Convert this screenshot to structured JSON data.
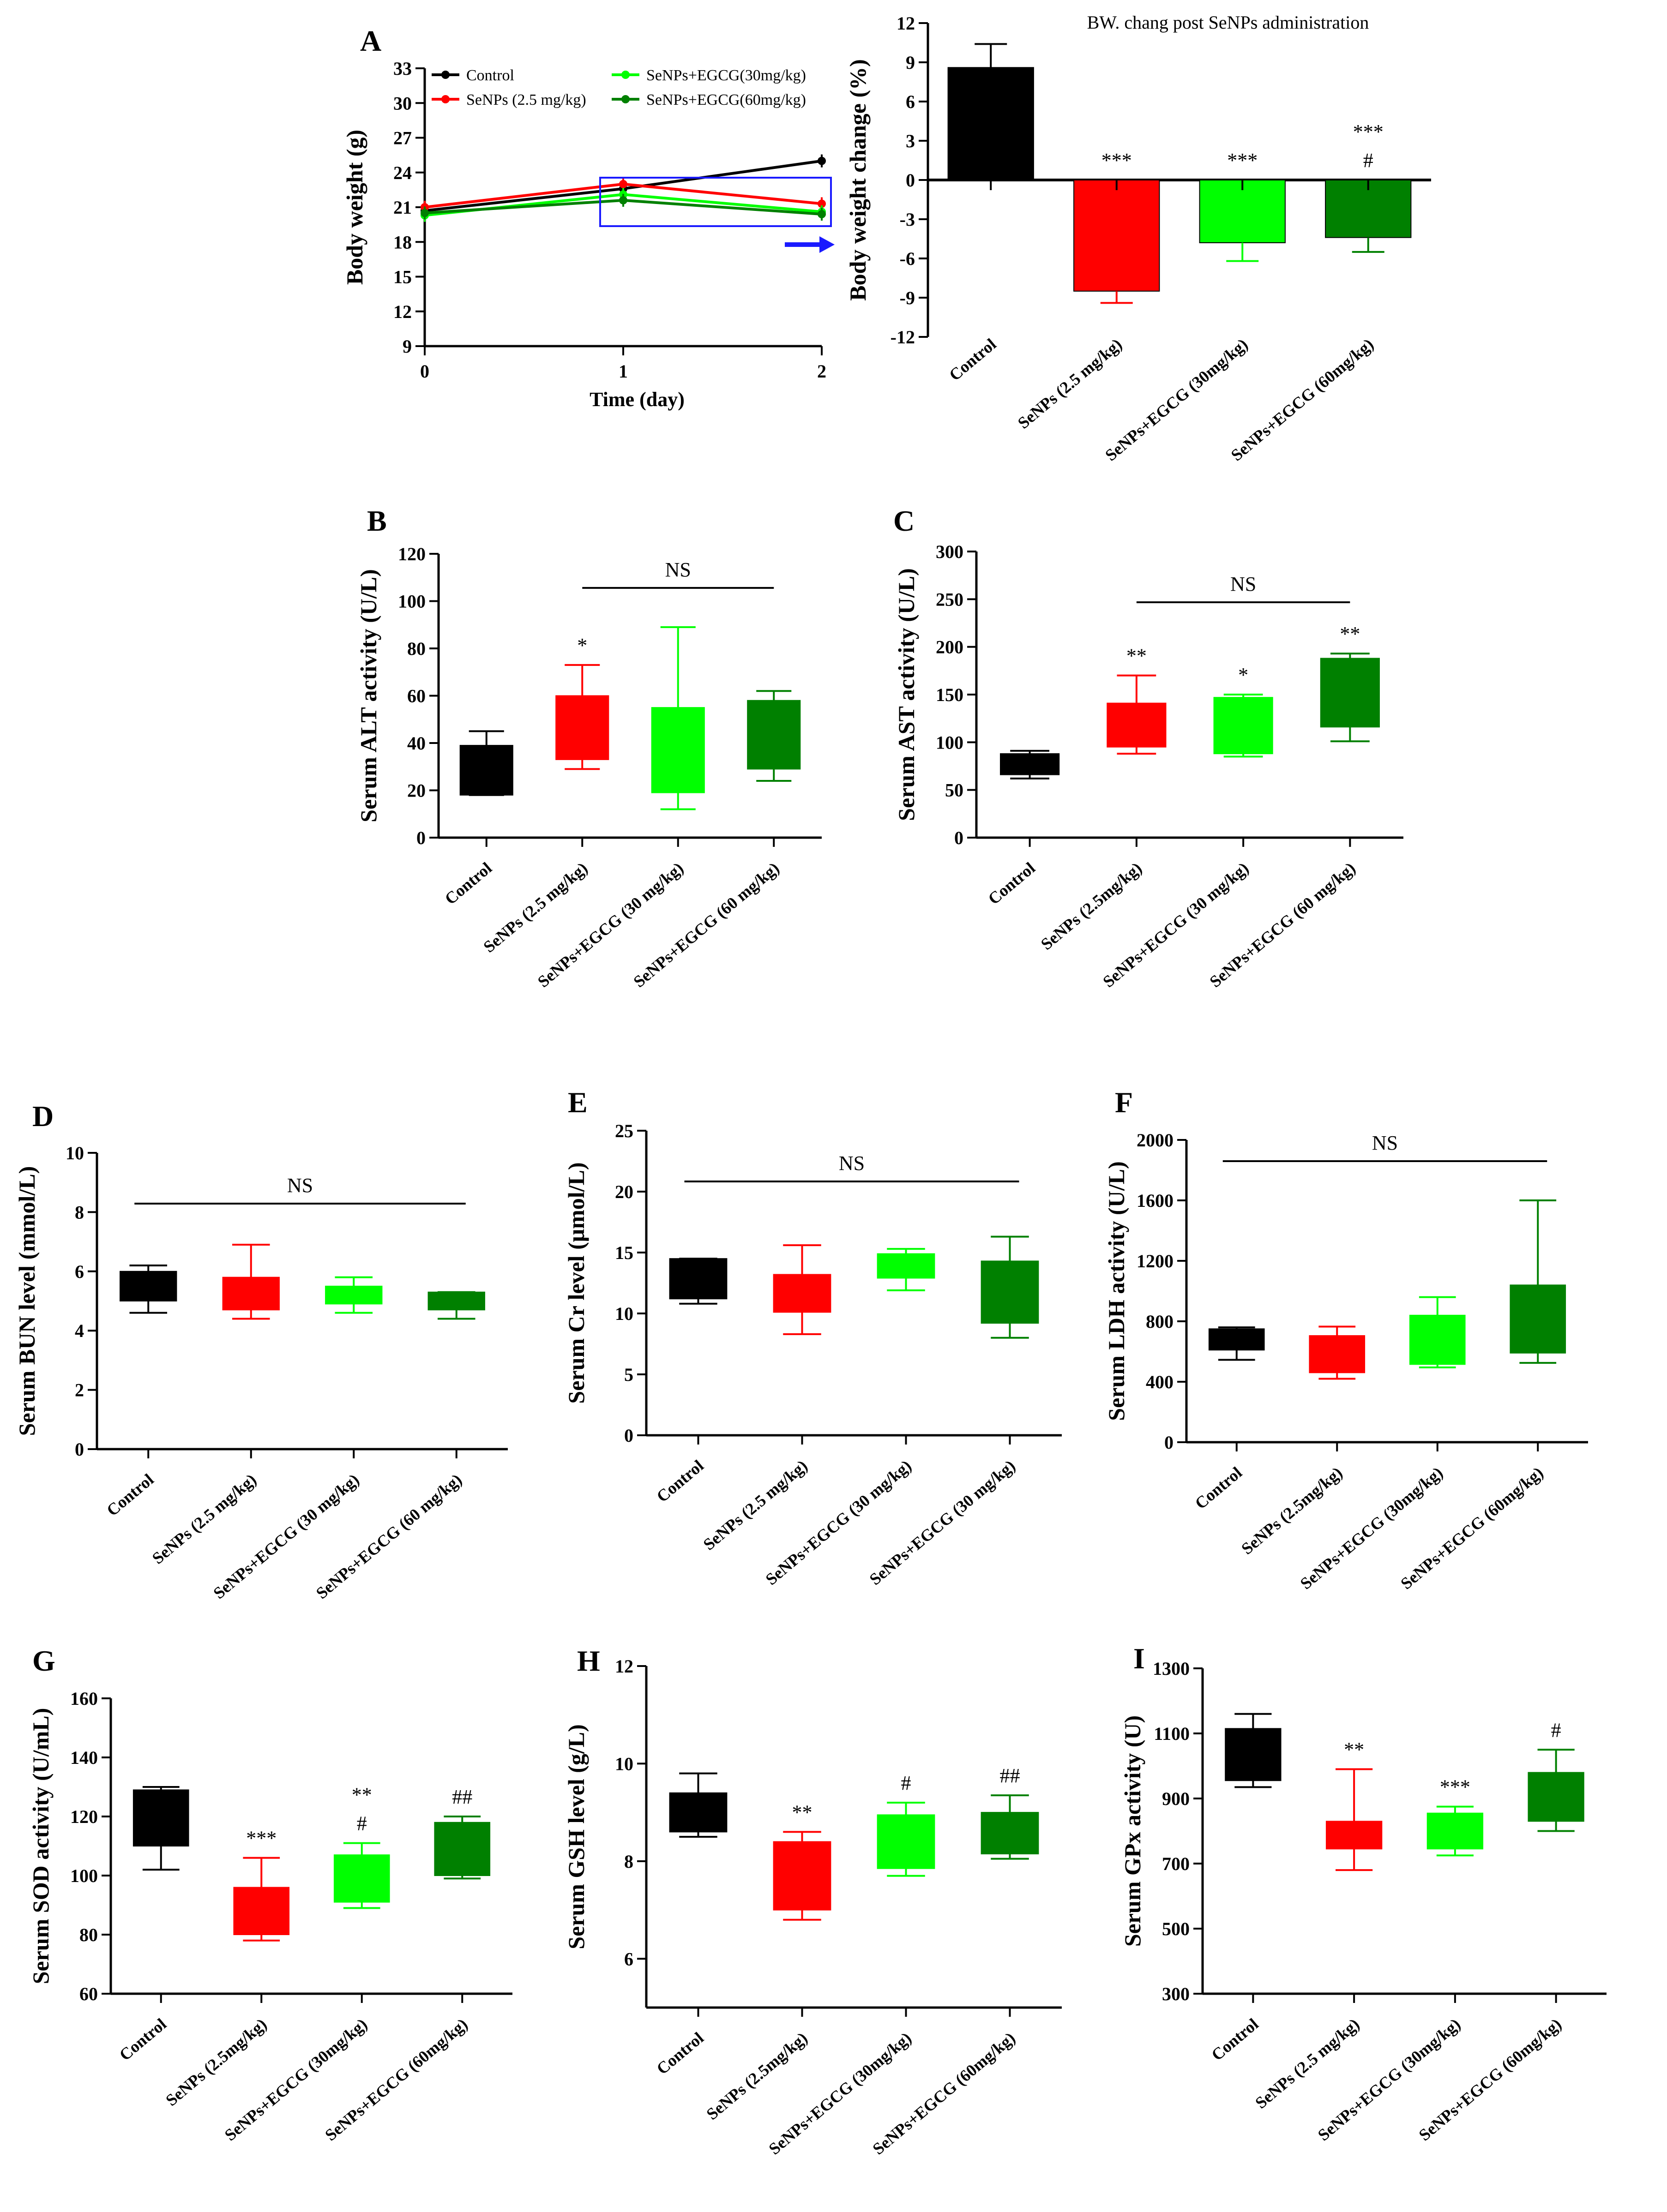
{
  "colors": {
    "control": "#000000",
    "senps": "#ff0000",
    "egcg30": "#00ff00",
    "egcg60": "#008000",
    "highlight": "#1a1aff",
    "axis": "#000000"
  },
  "chart_data": [
    {
      "id": "A1",
      "panel": "A",
      "type": "line",
      "xlabel": "Time (day)",
      "ylabel": "Body weight (g)",
      "xlim": [
        0,
        2
      ],
      "ylim": [
        9,
        33
      ],
      "xticks": [
        "0",
        "1",
        "2"
      ],
      "yticks": [
        "9",
        "12",
        "15",
        "18",
        "21",
        "24",
        "27",
        "30",
        "33"
      ],
      "x": [
        0,
        1,
        2
      ],
      "series": [
        {
          "name": "Control",
          "values": [
            20.7,
            22.6,
            25.0
          ],
          "color": "#000000"
        },
        {
          "name": "SeNPs (2.5 mg/kg)",
          "values": [
            21.0,
            23.0,
            21.3
          ],
          "color": "#ff0000"
        },
        {
          "name": "SeNPs+EGCG(30mg/kg)",
          "values": [
            20.3,
            22.1,
            20.6
          ],
          "color": "#00ff00"
        },
        {
          "name": "SeNPs+EGCG(60mg/kg)",
          "values": [
            20.5,
            21.6,
            20.4
          ],
          "color": "#008000"
        }
      ]
    },
    {
      "id": "A2",
      "panel": "",
      "type": "bar",
      "title": "BW. chang post SeNPs administration",
      "ylabel": "Body weight change (%)",
      "ylim": [
        -12,
        12
      ],
      "yticks": [
        "-12",
        "-9",
        "-6",
        "-3",
        "0",
        "3",
        "6",
        "9",
        "12"
      ],
      "categories": [
        "Control",
        "SeNPs (2.5 mg/kg)",
        "SeNPs+EGCG (30mg/kg)",
        "SeNPs+EGCG (60mg/kg)"
      ],
      "values": [
        8.6,
        -8.5,
        -4.8,
        -4.4
      ],
      "errors": [
        1.8,
        0.9,
        1.4,
        1.1
      ],
      "annotations": [
        "",
        "***",
        "***",
        "***\n#"
      ]
    },
    {
      "id": "B",
      "panel": "B",
      "type": "box",
      "ylabel": "Serum ALT activity (U/L)",
      "ylim": [
        0,
        120
      ],
      "yticks": [
        "0",
        "20",
        "40",
        "60",
        "80",
        "100",
        "120"
      ],
      "categories": [
        "Control",
        "SeNPs (2.5 mg/kg)",
        "SeNPs+EGCG (30 mg/kg)",
        "SeNPs+EGCG (60 mg/kg)"
      ],
      "boxes": [
        {
          "min": 18,
          "q1": 18,
          "q3": 39,
          "max": 45
        },
        {
          "min": 29,
          "q1": 33,
          "q3": 60,
          "max": 73
        },
        {
          "min": 12,
          "q1": 19,
          "q3": 55,
          "max": 89
        },
        {
          "min": 24,
          "q1": 29,
          "q3": 58,
          "max": 62
        }
      ],
      "annotations": [
        "",
        "*",
        "",
        ""
      ],
      "ns": {
        "label": "NS",
        "from": 1,
        "to": 3
      }
    },
    {
      "id": "C",
      "panel": "C",
      "type": "box",
      "ylabel": "Serum AST activity (U/L)",
      "ylim": [
        0,
        300
      ],
      "yticks": [
        "0",
        "50",
        "100",
        "150",
        "200",
        "250",
        "300"
      ],
      "categories": [
        "Control",
        "SeNPs (2.5mg/kg)",
        "SeNPs+EGCG (30 mg/kg)",
        "SeNPs+EGCG (60 mg/kg)"
      ],
      "boxes": [
        {
          "min": 62,
          "q1": 66,
          "q3": 88,
          "max": 91
        },
        {
          "min": 88,
          "q1": 95,
          "q3": 141,
          "max": 170
        },
        {
          "min": 85,
          "q1": 88,
          "q3": 147,
          "max": 150
        },
        {
          "min": 101,
          "q1": 116,
          "q3": 188,
          "max": 193
        }
      ],
      "annotations": [
        "",
        "**",
        "*",
        "**"
      ],
      "ns": {
        "label": "NS",
        "from": 1,
        "to": 3
      }
    },
    {
      "id": "D",
      "panel": "D",
      "type": "box",
      "ylabel": "Serum BUN level (mmol/L)",
      "ylim": [
        0,
        10
      ],
      "yticks": [
        "0",
        "2",
        "4",
        "6",
        "8",
        "10"
      ],
      "categories": [
        "Control",
        "SeNPs (2.5 mg/kg)",
        "SeNPs+EGCG (30 mg/kg)",
        "SeNPs+EGCG (60 mg/kg)"
      ],
      "boxes": [
        {
          "min": 4.6,
          "q1": 5.0,
          "q3": 6.0,
          "max": 6.2
        },
        {
          "min": 4.4,
          "q1": 4.7,
          "q3": 5.8,
          "max": 6.9
        },
        {
          "min": 4.6,
          "q1": 4.9,
          "q3": 5.5,
          "max": 5.8
        },
        {
          "min": 4.4,
          "q1": 4.7,
          "q3": 5.3,
          "max": 5.3
        }
      ],
      "annotations": [
        "",
        "",
        "",
        ""
      ],
      "ns": {
        "label": "NS",
        "from": 0,
        "to": 3
      }
    },
    {
      "id": "E",
      "panel": "E",
      "type": "box",
      "ylabel": "Serum Cr level (μmol/L)",
      "ylim": [
        0,
        25
      ],
      "yticks": [
        "0",
        "5",
        "10",
        "15",
        "20",
        "25"
      ],
      "categories": [
        "Control",
        "SeNPs (2.5 mg/kg)",
        "SeNPs+EGCG (30 mg/kg)",
        "SeNPs+EGCG (30 mg/kg)"
      ],
      "boxes": [
        {
          "min": 10.8,
          "q1": 11.2,
          "q3": 14.5,
          "max": 14.5
        },
        {
          "min": 8.3,
          "q1": 10.1,
          "q3": 13.2,
          "max": 15.6
        },
        {
          "min": 11.9,
          "q1": 12.9,
          "q3": 14.9,
          "max": 15.3
        },
        {
          "min": 8.0,
          "q1": 9.2,
          "q3": 14.3,
          "max": 16.3
        }
      ],
      "annotations": [
        "",
        "",
        "",
        ""
      ],
      "ns": {
        "label": "NS",
        "from": 0,
        "to": 3
      }
    },
    {
      "id": "F",
      "panel": "F",
      "type": "box",
      "ylabel": "Serum LDH activity (U/L)",
      "ylim": [
        0,
        2000
      ],
      "yticks": [
        "0",
        "400",
        "800",
        "1200",
        "1600",
        "2000"
      ],
      "categories": [
        "Control",
        "SeNPs (2.5mg/kg)",
        "SeNPs+EGCG (30mg/kg)",
        "SeNPs+EGCG (60mg/kg)"
      ],
      "boxes": [
        {
          "min": 545,
          "q1": 610,
          "q3": 750,
          "max": 760
        },
        {
          "min": 420,
          "q1": 460,
          "q3": 705,
          "max": 765
        },
        {
          "min": 495,
          "q1": 515,
          "q3": 840,
          "max": 960
        },
        {
          "min": 525,
          "q1": 590,
          "q3": 1040,
          "max": 1600
        }
      ],
      "annotations": [
        "",
        "",
        "",
        ""
      ],
      "ns": {
        "label": "NS",
        "from": 0,
        "to": 3
      }
    },
    {
      "id": "G",
      "panel": "G",
      "type": "box",
      "ylabel": "Serum SOD activity (U/mL)",
      "ylim": [
        60,
        160
      ],
      "yticks": [
        "60",
        "80",
        "100",
        "120",
        "140",
        "160"
      ],
      "categories": [
        "Control",
        "SeNPs (2.5mg/kg)",
        "SeNPs+EGCG (30mg/kg)",
        "SeNPs+EGCG (60mg/kg)"
      ],
      "boxes": [
        {
          "min": 102,
          "q1": 110,
          "q3": 129,
          "max": 130
        },
        {
          "min": 78,
          "q1": 80,
          "q3": 96,
          "max": 106
        },
        {
          "min": 89,
          "q1": 91,
          "q3": 107,
          "max": 111
        },
        {
          "min": 99,
          "q1": 100,
          "q3": 118,
          "max": 120
        }
      ],
      "annotations": [
        "",
        "***",
        "**\n#",
        "##"
      ],
      "ns": null
    },
    {
      "id": "H",
      "panel": "H",
      "type": "box",
      "ylabel": "Serum GSH level (g/L)",
      "ylim": [
        5,
        12
      ],
      "yticks": [
        "6",
        "8",
        "10",
        "12"
      ],
      "categories": [
        "Control",
        "SeNPs (2.5mg/kg)",
        "SeNPs+EGCG (30mg/kg)",
        "SeNPs+EGCG (60mg/kg)"
      ],
      "boxes": [
        {
          "min": 8.5,
          "q1": 8.6,
          "q3": 9.4,
          "max": 9.8
        },
        {
          "min": 6.8,
          "q1": 7.0,
          "q3": 8.4,
          "max": 8.6
        },
        {
          "min": 7.7,
          "q1": 7.85,
          "q3": 8.95,
          "max": 9.2
        },
        {
          "min": 8.05,
          "q1": 8.15,
          "q3": 9.0,
          "max": 9.35
        }
      ],
      "annotations": [
        "",
        "**",
        "#",
        "##"
      ],
      "ns": null
    },
    {
      "id": "I",
      "panel": "I",
      "type": "box",
      "ylabel": "Serum GPx activity (U)",
      "ylim": [
        300,
        1300
      ],
      "yticks": [
        "300",
        "500",
        "700",
        "900",
        "1100",
        "1300"
      ],
      "categories": [
        "Control",
        "SeNPs (2.5 mg/kg)",
        "SeNPs+EGCG (30mg/kg)",
        "SeNPs+EGCG (60mg/kg)"
      ],
      "boxes": [
        {
          "min": 935,
          "q1": 955,
          "q3": 1115,
          "max": 1160
        },
        {
          "min": 680,
          "q1": 745,
          "q3": 830,
          "max": 990
        },
        {
          "min": 725,
          "q1": 745,
          "q3": 855,
          "max": 875
        },
        {
          "min": 800,
          "q1": 830,
          "q3": 980,
          "max": 1050
        }
      ],
      "annotations": [
        "",
        "**",
        "***",
        "#"
      ],
      "ns": null
    }
  ]
}
